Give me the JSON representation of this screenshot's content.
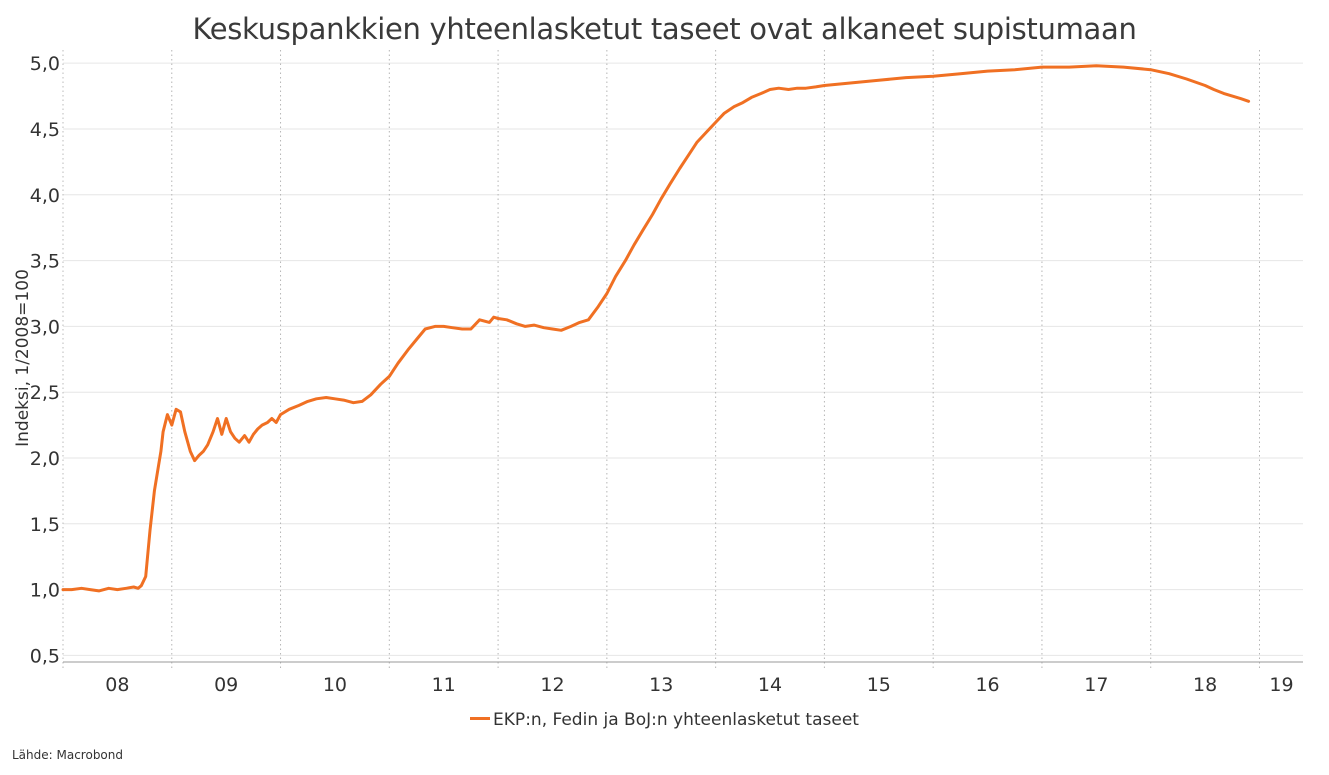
{
  "chart_data": {
    "type": "line",
    "title": "Keskuspankkien yhteenlasketut taseet ovat alkaneet supistumaan",
    "ylabel": "Indeksi, 1/2008=100",
    "xlabel": "",
    "ylim": [
      0.45,
      5.1
    ],
    "xlim": [
      2008.0,
      2019.4
    ],
    "x_tick_labels": [
      "08",
      "09",
      "10",
      "11",
      "12",
      "13",
      "14",
      "15",
      "16",
      "17",
      "18",
      "19"
    ],
    "y_ticks": [
      0.5,
      1.0,
      1.5,
      2.0,
      2.5,
      3.0,
      3.5,
      4.0,
      4.5,
      5.0
    ],
    "y_tick_labels": [
      "0,5",
      "1,0",
      "1,5",
      "2,0",
      "2,5",
      "3,0",
      "3,5",
      "4,0",
      "4,5",
      "5,0"
    ],
    "grid": true,
    "legend_position": "bottom-center",
    "series": [
      {
        "name": "EKP:n, Fedin ja BoJ:n yhteenlasketut taseet",
        "color": "#f07023",
        "x": [
          2008.0,
          2008.08,
          2008.17,
          2008.25,
          2008.33,
          2008.42,
          2008.5,
          2008.58,
          2008.65,
          2008.69,
          2008.72,
          2008.76,
          2008.8,
          2008.84,
          2008.88,
          2008.9,
          2008.92,
          2008.96,
          2009.0,
          2009.04,
          2009.08,
          2009.12,
          2009.17,
          2009.21,
          2009.25,
          2009.29,
          2009.33,
          2009.38,
          2009.42,
          2009.46,
          2009.5,
          2009.54,
          2009.58,
          2009.62,
          2009.67,
          2009.71,
          2009.75,
          2009.79,
          2009.83,
          2009.88,
          2009.92,
          2009.96,
          2010.0,
          2010.08,
          2010.17,
          2010.25,
          2010.33,
          2010.42,
          2010.5,
          2010.58,
          2010.67,
          2010.75,
          2010.83,
          2010.92,
          2011.0,
          2011.08,
          2011.17,
          2011.25,
          2011.33,
          2011.42,
          2011.5,
          2011.58,
          2011.67,
          2011.75,
          2011.83,
          2011.92,
          2011.96,
          2012.0,
          2012.08,
          2012.17,
          2012.25,
          2012.33,
          2012.42,
          2012.5,
          2012.58,
          2012.67,
          2012.75,
          2012.83,
          2012.92,
          2013.0,
          2013.08,
          2013.17,
          2013.25,
          2013.33,
          2013.42,
          2013.5,
          2013.58,
          2013.67,
          2013.75,
          2013.83,
          2013.92,
          2014.0,
          2014.08,
          2014.17,
          2014.25,
          2014.33,
          2014.42,
          2014.5,
          2014.58,
          2014.67,
          2014.75,
          2014.83,
          2014.92,
          2015.0,
          2015.25,
          2015.5,
          2015.75,
          2016.0,
          2016.25,
          2016.5,
          2016.75,
          2017.0,
          2017.25,
          2017.5,
          2017.75,
          2018.0,
          2018.17,
          2018.33,
          2018.5,
          2018.58,
          2018.67,
          2018.75,
          2018.83,
          2018.9
        ],
        "y": [
          1.0,
          1.0,
          1.01,
          1.0,
          0.99,
          1.01,
          1.0,
          1.01,
          1.02,
          1.01,
          1.03,
          1.1,
          1.45,
          1.75,
          1.95,
          2.05,
          2.2,
          2.33,
          2.25,
          2.37,
          2.35,
          2.2,
          2.05,
          1.98,
          2.02,
          2.05,
          2.1,
          2.2,
          2.3,
          2.18,
          2.3,
          2.2,
          2.15,
          2.12,
          2.17,
          2.12,
          2.18,
          2.22,
          2.25,
          2.27,
          2.3,
          2.27,
          2.33,
          2.37,
          2.4,
          2.43,
          2.45,
          2.46,
          2.45,
          2.44,
          2.42,
          2.43,
          2.48,
          2.56,
          2.62,
          2.72,
          2.82,
          2.9,
          2.98,
          3.0,
          3.0,
          2.99,
          2.98,
          2.98,
          3.05,
          3.03,
          3.07,
          3.06,
          3.05,
          3.02,
          3.0,
          3.01,
          2.99,
          2.98,
          2.97,
          3.0,
          3.03,
          3.05,
          3.15,
          3.25,
          3.38,
          3.5,
          3.62,
          3.73,
          3.85,
          3.97,
          4.08,
          4.2,
          4.3,
          4.4,
          4.48,
          4.55,
          4.62,
          4.67,
          4.7,
          4.74,
          4.77,
          4.8,
          4.81,
          4.8,
          4.81,
          4.81,
          4.82,
          4.83,
          4.85,
          4.87,
          4.89,
          4.9,
          4.92,
          4.94,
          4.95,
          4.97,
          4.97,
          4.98,
          4.97,
          4.95,
          4.92,
          4.88,
          4.83,
          4.8,
          4.77,
          4.75,
          4.73,
          4.71
        ]
      }
    ]
  },
  "legend": {
    "label": "EKP:n, Fedin ja BoJ:n yhteenlasketut taseet"
  },
  "source_text": "Lähde: Macrobond"
}
